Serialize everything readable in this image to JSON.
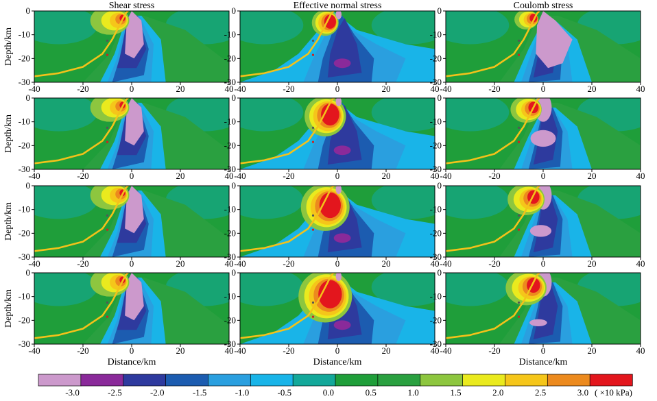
{
  "chart_data": {
    "type": "heatmap",
    "grid": {
      "rows": 4,
      "columns": 3
    },
    "column_titles": [
      "Shear stress",
      "Effective normal stress",
      "Coulomb stress"
    ],
    "xlabel": "Distance/km",
    "ylabel": "Depth/km",
    "xlim": [
      -40,
      40
    ],
    "ylim": [
      -30,
      0
    ],
    "x_ticks": [
      "-40",
      "-20",
      "0",
      "20",
      "40"
    ],
    "y_ticks": [
      "0",
      "-10",
      "-20",
      "-30"
    ],
    "colorbar": {
      "unit": "( ×10 kPa)",
      "tick_labels": [
        "-3.0",
        "-2.5",
        "-2.0",
        "-1.5",
        "-1.0",
        "-0.5",
        "0.0",
        "0.5",
        "1.0",
        "1.5",
        "2.0",
        "2.5",
        "3.0"
      ],
      "colors": [
        "#cc99cc",
        "#8a2a9a",
        "#2e3a9e",
        "#1c5cb0",
        "#2a9fdf",
        "#19b4e8",
        "#13a89a",
        "#1f9e3a",
        "#2aa040",
        "#8dc63f",
        "#eaea1e",
        "#f5c61a",
        "#ec8a1e",
        "#e3161d"
      ]
    },
    "fault_trace_depth_vs_distance": [
      [
        -40,
        -27.5
      ],
      [
        -30,
        -26.2
      ],
      [
        -20,
        -23.5
      ],
      [
        -12,
        -18
      ],
      [
        -8,
        -12
      ],
      [
        -5,
        -6
      ],
      [
        -2.5,
        -1
      ],
      [
        -1.5,
        0
      ]
    ],
    "markers": [
      {
        "x": -10,
        "y": -12.5,
        "color": "#555555"
      },
      {
        "x": -10,
        "y": -18.5,
        "color": "#d12020"
      }
    ],
    "panels": [
      {
        "row": 1,
        "column": "Shear stress"
      },
      {
        "row": 1,
        "column": "Effective normal stress"
      },
      {
        "row": 1,
        "column": "Coulomb stress"
      },
      {
        "row": 2,
        "column": "Shear stress"
      },
      {
        "row": 2,
        "column": "Effective normal stress"
      },
      {
        "row": 2,
        "column": "Coulomb stress"
      },
      {
        "row": 3,
        "column": "Shear stress"
      },
      {
        "row": 3,
        "column": "Effective normal stress"
      },
      {
        "row": 3,
        "column": "Coulomb stress"
      },
      {
        "row": 4,
        "column": "Shear stress"
      },
      {
        "row": 4,
        "column": "Effective normal stress"
      },
      {
        "row": 4,
        "column": "Coulomb stress"
      }
    ]
  }
}
